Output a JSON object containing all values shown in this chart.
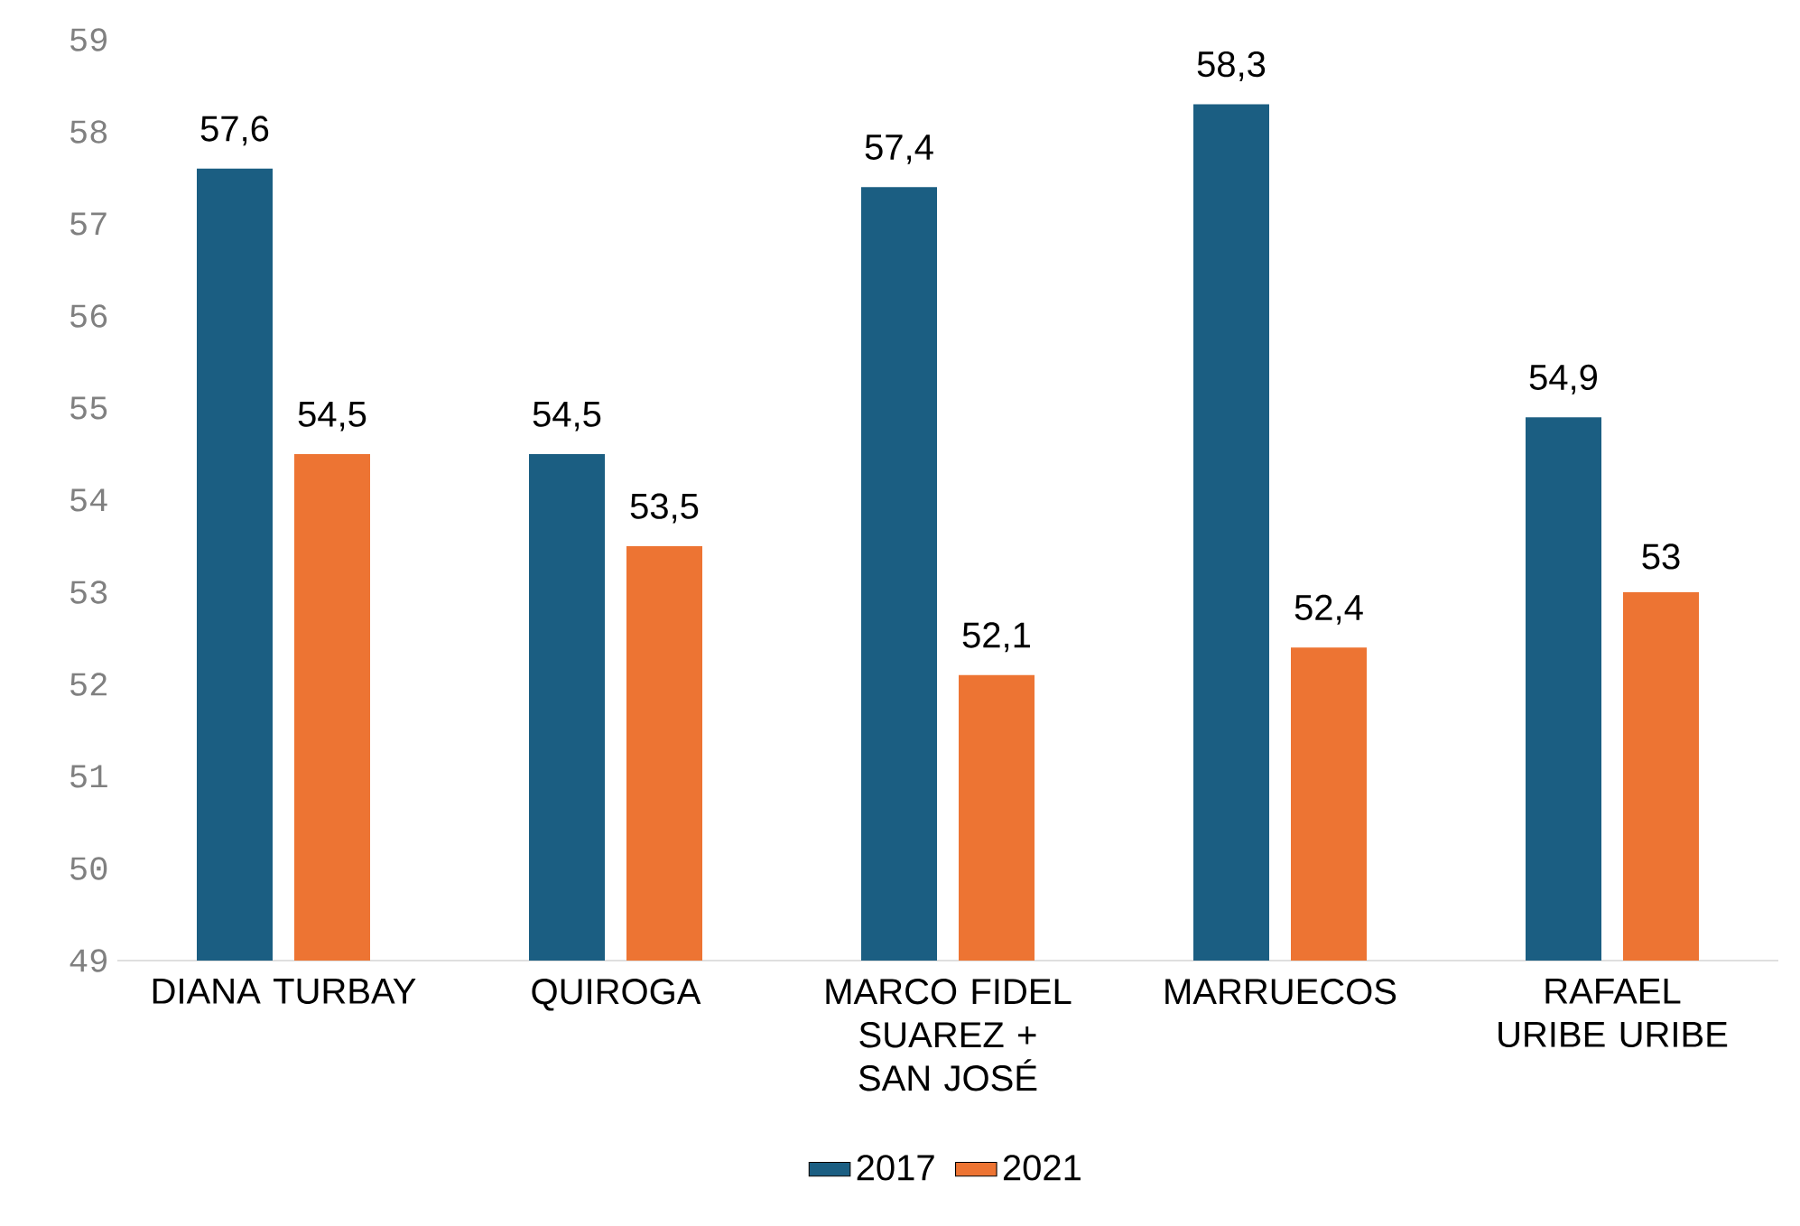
{
  "chart_data": {
    "type": "bar",
    "categories": [
      "DIANA TURBAY",
      "QUIROGA",
      "MARCO FIDEL SUAREZ + SAN JOSÉ",
      "MARRUECOS",
      "RAFAEL URIBE URIBE"
    ],
    "series": [
      {
        "name": "2017",
        "color": "#1b5e82",
        "values": [
          57.6,
          54.5,
          57.4,
          58.3,
          54.9
        ],
        "value_labels": [
          "57,6",
          "54,5",
          "57,4",
          "58,3",
          "54,9"
        ]
      },
      {
        "name": "2021",
        "color": "#ed7433",
        "values": [
          54.5,
          53.5,
          52.1,
          52.4,
          53
        ],
        "value_labels": [
          "54,5",
          "53,5",
          "52,1",
          "52,4",
          "53"
        ]
      }
    ],
    "ylim": [
      49,
      59
    ],
    "yticks": [
      49,
      50,
      51,
      52,
      53,
      54,
      55,
      56,
      57,
      58,
      59
    ],
    "grid": false,
    "legend": "bottom"
  }
}
